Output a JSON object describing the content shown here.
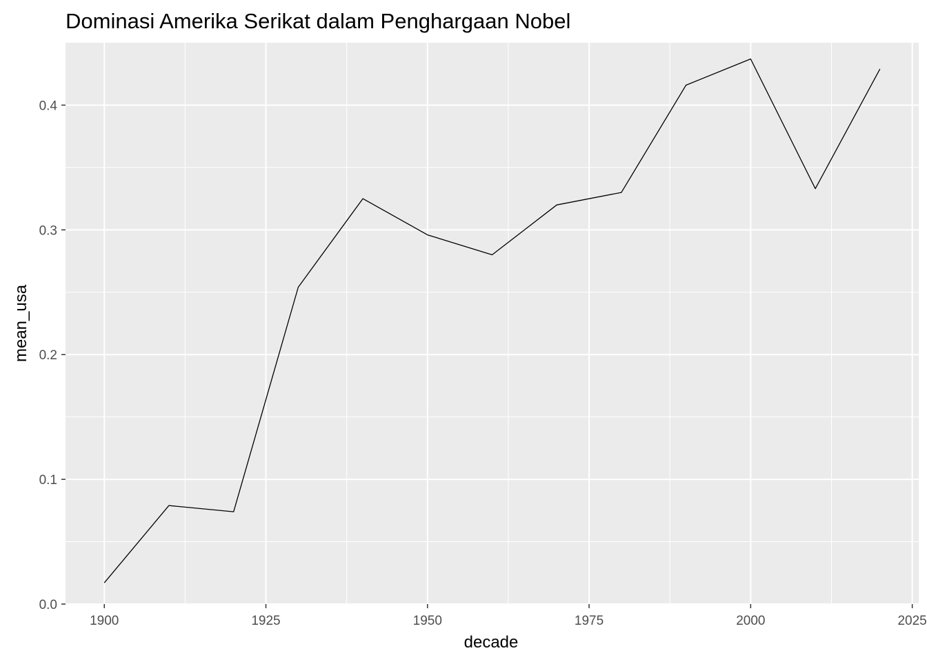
{
  "chart_data": {
    "type": "line",
    "title": "Dominasi Amerika Serikat dalam Penghargaan Nobel",
    "xlabel": "decade",
    "ylabel": "mean_usa",
    "x_ticks": [
      "1900",
      "1925",
      "1950",
      "1975",
      "2000",
      "2025"
    ],
    "y_ticks": [
      "0.0",
      "0.1",
      "0.2",
      "0.3",
      "0.4"
    ],
    "xlim": [
      1894,
      2026
    ],
    "ylim": [
      0.0,
      0.45
    ],
    "grid": true,
    "legend": "none",
    "series": [
      {
        "x": [
          1900,
          1910,
          1920,
          1930,
          1940,
          1950,
          1960,
          1970,
          1980,
          1990,
          2000,
          2010,
          2020
        ],
        "y": [
          0.017,
          0.079,
          0.074,
          0.254,
          0.325,
          0.296,
          0.28,
          0.32,
          0.33,
          0.416,
          0.437,
          0.333,
          0.429
        ]
      }
    ],
    "colors": {
      "panel": "#ebebeb",
      "grid": "#ffffff",
      "line": "#000000",
      "tick_text": "#4d4d4d"
    }
  }
}
